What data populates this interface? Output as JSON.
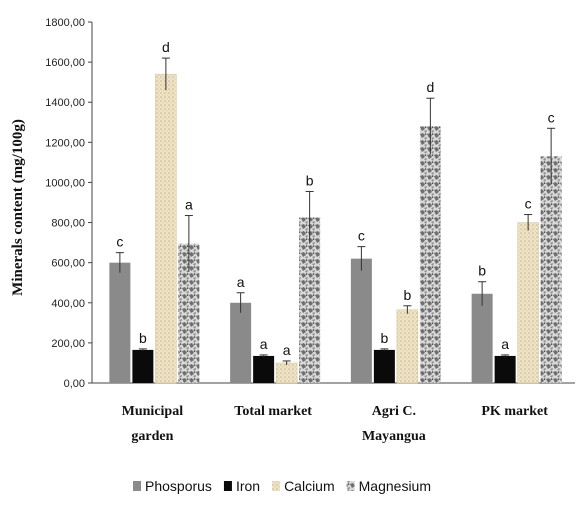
{
  "chart_data": {
    "type": "bar",
    "ylabel": "Minerals content (mg/100g)",
    "ylim": [
      0,
      1800
    ],
    "y_ticks": [
      "0,00",
      "200,00",
      "400,00",
      "600,00",
      "800,00",
      "1000,00",
      "1200,00",
      "1400,00",
      "1600,00",
      "1800,00"
    ],
    "categories": [
      [
        "Municipal",
        "garden"
      ],
      [
        "Total market"
      ],
      [
        "Agri C.",
        "Mayangua"
      ],
      [
        "PK market"
      ]
    ],
    "legend_position": "bottom",
    "grid": false,
    "series": [
      {
        "name": "Phosporus",
        "color": "#8a8a8a",
        "pattern": "solid",
        "values": [
          600,
          400,
          620,
          445
        ],
        "errors": [
          50,
          50,
          60,
          60
        ],
        "letters": [
          "c",
          "a",
          "c",
          "b"
        ]
      },
      {
        "name": "Iron",
        "color": "#0a0a0a",
        "pattern": "solid",
        "values": [
          165,
          135,
          165,
          135
        ],
        "errors": [
          5,
          5,
          5,
          5
        ],
        "letters": [
          "b",
          "a",
          "b",
          "a"
        ]
      },
      {
        "name": "Calcium",
        "color": "#e8d9b5",
        "pattern": "dots",
        "values": [
          1540,
          100,
          365,
          800
        ],
        "errors": [
          80,
          10,
          20,
          40
        ],
        "letters": [
          "d",
          "a",
          "b",
          "c"
        ]
      },
      {
        "name": "Magnesium",
        "color": "#b0b0b0",
        "pattern": "speckle",
        "values": [
          695,
          825,
          1280,
          1130
        ],
        "errors": [
          140,
          130,
          140,
          140
        ],
        "letters": [
          "a",
          "b",
          "d",
          "c"
        ]
      }
    ]
  }
}
